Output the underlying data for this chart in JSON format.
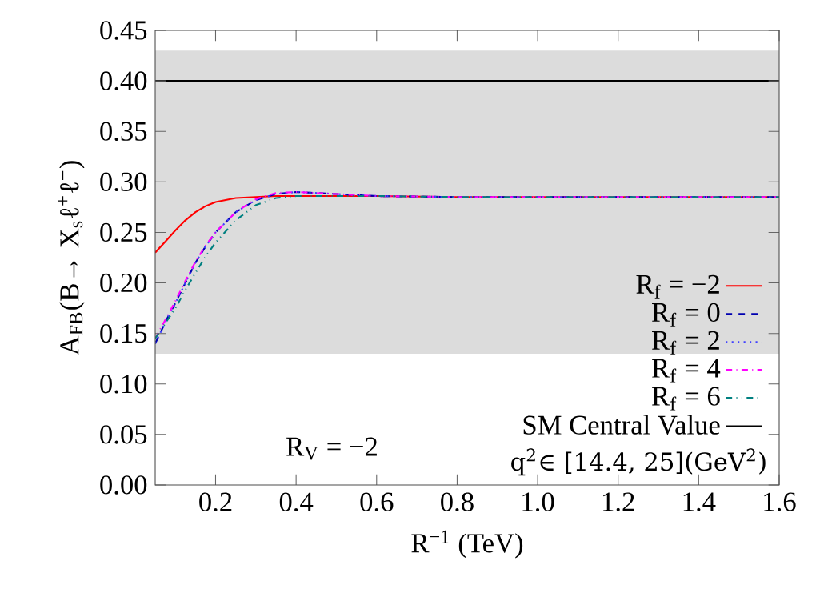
{
  "chart_data": {
    "type": "line",
    "xlabel": "R$^{−1}$ (TeV)",
    "ylabel": "A$_{FB}$(B→ X$_{s}$ℓ$^{+}$ℓ$^{−}$)",
    "x": [
      0.05,
      0.08,
      0.1,
      0.125,
      0.15,
      0.175,
      0.2,
      0.25,
      0.3,
      0.35,
      0.4,
      0.5,
      0.6,
      0.8,
      1.0,
      1.2,
      1.4,
      1.6
    ],
    "series": [
      {
        "name": "R$_{f}$ = −2",
        "color": "#ff0000",
        "line_style": "solid",
        "values": [
          0.23,
          0.243,
          0.252,
          0.262,
          0.27,
          0.276,
          0.28,
          0.284,
          0.285,
          0.286,
          0.286,
          0.286,
          0.286,
          0.285,
          0.285,
          0.285,
          0.285,
          0.285
        ]
      },
      {
        "name": "R$_{f}$ = 0",
        "color": "#0000b0",
        "line_style": "dashed",
        "values": [
          0.14,
          0.165,
          0.18,
          0.2,
          0.22,
          0.236,
          0.25,
          0.27,
          0.282,
          0.288,
          0.29,
          0.288,
          0.286,
          0.285,
          0.285,
          0.285,
          0.285,
          0.285
        ]
      },
      {
        "name": "R$_{f}$ = 2",
        "color": "#4040ff",
        "line_style": "dotted",
        "values": [
          0.14,
          0.165,
          0.18,
          0.2,
          0.22,
          0.236,
          0.25,
          0.27,
          0.282,
          0.288,
          0.29,
          0.288,
          0.286,
          0.285,
          0.285,
          0.285,
          0.285,
          0.285
        ]
      },
      {
        "name": "R$_{f}$ = 4",
        "color": "#ff00ff",
        "line_style": "dashdot",
        "values": [
          0.145,
          0.167,
          0.182,
          0.202,
          0.221,
          0.237,
          0.25,
          0.27,
          0.283,
          0.289,
          0.29,
          0.288,
          0.286,
          0.285,
          0.285,
          0.285,
          0.285,
          0.285
        ]
      },
      {
        "name": "R$_{f}$ = 6",
        "color": "#008080",
        "line_style": "dashdotdot",
        "values": [
          0.145,
          0.163,
          0.175,
          0.193,
          0.21,
          0.226,
          0.24,
          0.262,
          0.277,
          0.284,
          0.286,
          0.286,
          0.286,
          0.285,
          0.285,
          0.285,
          0.285,
          0.285
        ]
      },
      {
        "name": "SM Central Value",
        "color": "#000000",
        "line_style": "solid",
        "x": [
          0.05,
          1.6
        ],
        "values": [
          0.4,
          0.4
        ]
      }
    ],
    "bands": [
      {
        "axis": "y",
        "from": 0.13,
        "to": 0.43,
        "color": "#dcdcdc"
      }
    ],
    "annotations": [
      "R$_{V}$ = −2",
      "q$^{2}$∈ [14.4, 25](GeV$^{2}$)"
    ],
    "xlim": [
      0.05,
      1.6
    ],
    "ylim": [
      0,
      0.45
    ],
    "xticks": [
      {
        "value": 0.2,
        "label": "0.2"
      },
      {
        "value": 0.4,
        "label": "0.4"
      },
      {
        "value": 0.6,
        "label": "0.6"
      },
      {
        "value": 0.8,
        "label": "0.8"
      },
      {
        "value": 1.0,
        "label": "1.0"
      },
      {
        "value": 1.2,
        "label": "1.2"
      },
      {
        "value": 1.4,
        "label": "1.4"
      },
      {
        "value": 1.6,
        "label": "1.6"
      }
    ],
    "yticks": [
      {
        "value": 0,
        "label": "0.00"
      },
      {
        "value": 0.05,
        "label": "0.05"
      },
      {
        "value": 0.1,
        "label": "0.10"
      },
      {
        "value": 0.15,
        "label": "0.15"
      },
      {
        "value": 0.2,
        "label": "0.20"
      },
      {
        "value": 0.25,
        "label": "0.25"
      },
      {
        "value": 0.3,
        "label": "0.30"
      },
      {
        "value": 0.35,
        "label": "0.35"
      },
      {
        "value": 0.4,
        "label": "0.40"
      },
      {
        "value": 0.45,
        "label": "0.45"
      }
    ],
    "marker": "none",
    "grid": false,
    "legend": "bottom right"
  }
}
